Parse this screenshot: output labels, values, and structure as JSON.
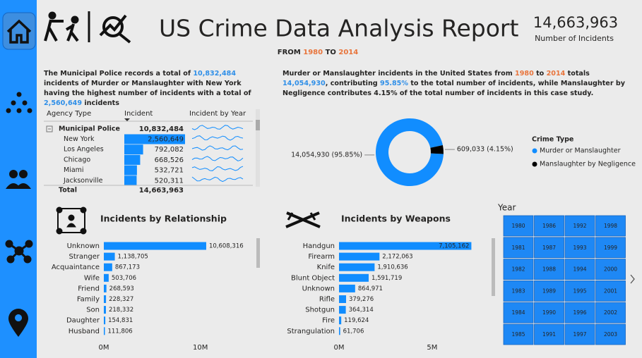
{
  "header": {
    "title": "US Crime Data Analysis Report",
    "from_label": "FROM",
    "from_year": "1980",
    "to_label": "TO",
    "to_year": "2014",
    "kpi_value": "14,663,963",
    "kpi_label": "Number of Incidents"
  },
  "summary_left": {
    "segments": [
      {
        "text": "The Municipal Police records a total of "
      },
      {
        "text": "10,832,484",
        "style": "number"
      },
      {
        "text": " incidents of Murder or Manslaughter with New York having the highest number of incidents with a total of "
      },
      {
        "text": "2,560,649",
        "style": "number"
      },
      {
        "text": " incidents"
      }
    ]
  },
  "summary_right": {
    "segments": [
      {
        "text": "Murder or Manslaughter incidents in the United States from "
      },
      {
        "text": "1980",
        "style": "year"
      },
      {
        "text": " to "
      },
      {
        "text": "2014",
        "style": "year"
      },
      {
        "text": " totals "
      },
      {
        "text": "14,054,930",
        "style": "number"
      },
      {
        "text": ", contributing "
      },
      {
        "text": "95.85%",
        "style": "number"
      },
      {
        "text": " to the total number of incidents, while Manslaughter by Negligence contributes 4.15% of the total number of incidents in this case study."
      }
    ]
  },
  "table": {
    "columns": [
      "Agency Type",
      "Incident",
      "Incident by Year"
    ],
    "group": {
      "name": "Municipal Police",
      "incident": "10,832,484"
    },
    "rows": [
      {
        "name": "New York",
        "incident": 2560649,
        "incident_label": "2,560,649"
      },
      {
        "name": "Los Angeles",
        "incident": 792082,
        "incident_label": "792,082"
      },
      {
        "name": "Chicago",
        "incident": 668526,
        "incident_label": "668,526"
      },
      {
        "name": "Miami",
        "incident": 532721,
        "incident_label": "532,721"
      },
      {
        "name": "Jacksonville",
        "incident": 520311,
        "incident_label": "520,311"
      }
    ],
    "total": {
      "name": "Total",
      "incident": "14,663,963"
    }
  },
  "chart_data": [
    {
      "type": "pie",
      "donut": true,
      "legend_title": "Crime Type",
      "categories": [
        "Murder or Manslaughter",
        "Manslaughter by Negligence"
      ],
      "values": [
        14054930,
        609033
      ],
      "value_labels": [
        "14,054,930 (95.85%)",
        "609,033 (4.15%)"
      ],
      "colors": [
        "#118dff",
        "#000000"
      ]
    },
    {
      "type": "hbar",
      "title": "Incidents by Relationship",
      "color": "#118dff",
      "categories": [
        "Unknown",
        "Stranger",
        "Acquaintance",
        "Wife",
        "Friend",
        "Family",
        "Son",
        "Daughter",
        "Husband"
      ],
      "values": [
        10608316,
        1138705,
        867173,
        503706,
        268593,
        228327,
        218332,
        154831,
        111806
      ],
      "value_labels": [
        "10,608,316",
        "1,138,705",
        "867,173",
        "503,706",
        "268,593",
        "228,327",
        "218,332",
        "154,831",
        "111,806"
      ],
      "xlim": [
        0,
        15000000
      ],
      "xticks": [
        {
          "value": 0,
          "label": "0M"
        },
        {
          "value": 10000000,
          "label": "10M"
        }
      ]
    },
    {
      "type": "hbar",
      "title": "Incidents by Weapons",
      "color": "#118dff",
      "categories": [
        "Handgun",
        "Firearm",
        "Knife",
        "Blunt Object",
        "Unknown",
        "Rifle",
        "Shotgun",
        "Fire",
        "Strangulation"
      ],
      "values": [
        7105162,
        2172063,
        1910636,
        1591719,
        864971,
        379276,
        364314,
        119624,
        61706
      ],
      "value_labels": [
        "7,105,162",
        "2,172,063",
        "1,910,636",
        "1,591,719",
        "864,971",
        "379,276",
        "364,314",
        "119,624",
        "61,706"
      ],
      "xlim": [
        0,
        8000000
      ],
      "xticks": [
        {
          "value": 0,
          "label": "0M"
        },
        {
          "value": 5000000,
          "label": "5M"
        }
      ]
    }
  ],
  "year_slicer": {
    "title": "Year",
    "years": [
      "1980",
      "1981",
      "1982",
      "1983",
      "1984",
      "1985",
      "1986",
      "1987",
      "1988",
      "1989",
      "1990",
      "1991",
      "1992",
      "1993",
      "1994",
      "1995",
      "1996",
      "1997",
      "1998",
      "1999",
      "2000",
      "2001",
      "2002",
      "2003"
    ]
  }
}
